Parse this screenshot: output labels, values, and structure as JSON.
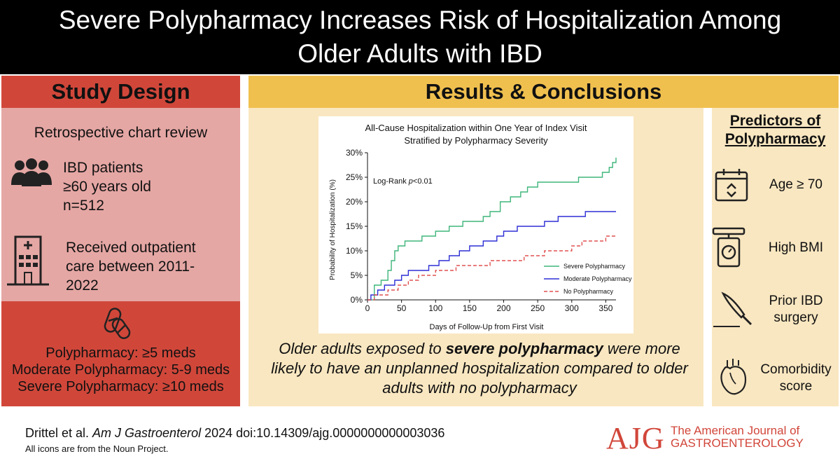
{
  "title": {
    "line1": "Severe Polypharmacy Increases Risk of Hospitalization Among",
    "line2": "Older Adults with IBD"
  },
  "study_design": {
    "header": "Study Design",
    "method": "Retrospective chart review",
    "patients": [
      "IBD patients",
      "≥60 years old",
      "n=512"
    ],
    "care": [
      "Received outpatient",
      "care between 2011-",
      "2022"
    ],
    "definitions": [
      "Polypharmacy: ≥5 meds",
      "Moderate Polypharmacy: 5-9 meds",
      "Severe Polypharmacy: ≥10 meds"
    ],
    "icons": [
      "people-icon",
      "hospital-icon",
      "pills-icon"
    ]
  },
  "results": {
    "header": "Results & Conclusions",
    "conclusion_pre": "Older adults exposed to ",
    "conclusion_bold": "severe polypharmacy",
    "conclusion_post": " were more likely to have an unplanned hospitalization compared to older adults with no polypharmacy"
  },
  "predictors": {
    "title_line1": "Predictors of",
    "title_line2": "Polypharmacy",
    "items": [
      {
        "lines": [
          "Age ≥ 70"
        ],
        "icon": "calendar-icon"
      },
      {
        "lines": [
          "High BMI"
        ],
        "icon": "scale-icon"
      },
      {
        "lines": [
          "Prior IBD",
          "surgery"
        ],
        "icon": "scalpel-icon"
      },
      {
        "lines": [
          "Comorbidity",
          "score"
        ],
        "icon": "heart-icon"
      }
    ]
  },
  "chart_data": {
    "type": "line",
    "title": "All-Cause Hospitalization within One Year of Index Visit",
    "subtitle": "Stratified by Polypharmacy Severity",
    "xlabel": "Days of Follow-Up from First Visit",
    "ylabel": "Probability of Hospitalization (%)",
    "xlim": [
      0,
      365
    ],
    "ylim": [
      0,
      30
    ],
    "xticks": [
      0,
      50,
      100,
      150,
      200,
      250,
      300,
      350
    ],
    "yticks": [
      0,
      5,
      10,
      15,
      20,
      25,
      30
    ],
    "ytick_labels": [
      "0%",
      "5%",
      "10%",
      "15%",
      "20%",
      "25%",
      "30%"
    ],
    "annotation_prefix": "Log-Rank ",
    "annotation_p": "p",
    "annotation_suffix": "<0.01",
    "series": [
      {
        "name": "Severe Polypharmacy",
        "color": "#3fb57a",
        "dash": false,
        "x": [
          0,
          10,
          20,
          30,
          35,
          40,
          45,
          55,
          70,
          80,
          100,
          120,
          140,
          155,
          170,
          180,
          195,
          210,
          225,
          235,
          250,
          270,
          295,
          310,
          330,
          345,
          355,
          360,
          365
        ],
        "y": [
          0,
          3,
          4,
          6,
          8,
          10,
          11,
          12,
          12,
          13,
          14,
          15,
          16,
          16,
          17,
          18,
          20,
          21,
          22,
          23,
          24,
          24,
          24,
          25,
          25,
          26,
          27,
          28,
          29
        ]
      },
      {
        "name": "Moderate Polypharmacy",
        "color": "#2e2ed6",
        "dash": false,
        "x": [
          0,
          5,
          15,
          25,
          40,
          50,
          60,
          75,
          90,
          105,
          120,
          135,
          150,
          170,
          190,
          200,
          220,
          245,
          260,
          280,
          300,
          320,
          340,
          365
        ],
        "y": [
          0,
          1,
          2,
          3,
          4,
          5,
          6,
          6,
          7,
          8,
          9,
          10,
          11,
          12,
          13,
          14,
          15,
          15,
          16,
          17,
          17,
          18,
          18,
          18
        ]
      },
      {
        "name": "No Polypharmacy",
        "color": "#e05050",
        "dash": true,
        "x": [
          0,
          10,
          30,
          45,
          60,
          75,
          100,
          130,
          160,
          180,
          200,
          230,
          260,
          280,
          300,
          315,
          335,
          350,
          365
        ],
        "y": [
          0,
          1,
          2,
          3,
          4,
          5,
          6,
          7,
          7,
          8,
          8,
          9,
          10,
          10,
          11,
          12,
          12,
          13,
          13
        ]
      }
    ]
  },
  "footer": {
    "citation_authors": "Drittel et al. ",
    "citation_journal": "Am J Gastroenterol",
    "citation_rest": " 2024  doi:10.14309/ajg.0000000000003036",
    "note": "All icons are from the Noun Project.",
    "logo": "AJG",
    "journal_line1": "The American Journal of",
    "journal_line2": "GASTROENTEROLOGY"
  },
  "colors": {
    "design_dark": "#d0473a",
    "design_light": "#e5a7a4",
    "results_dark": "#f0c04f",
    "results_light": "#f9e7c1",
    "brand": "#d1463a"
  }
}
